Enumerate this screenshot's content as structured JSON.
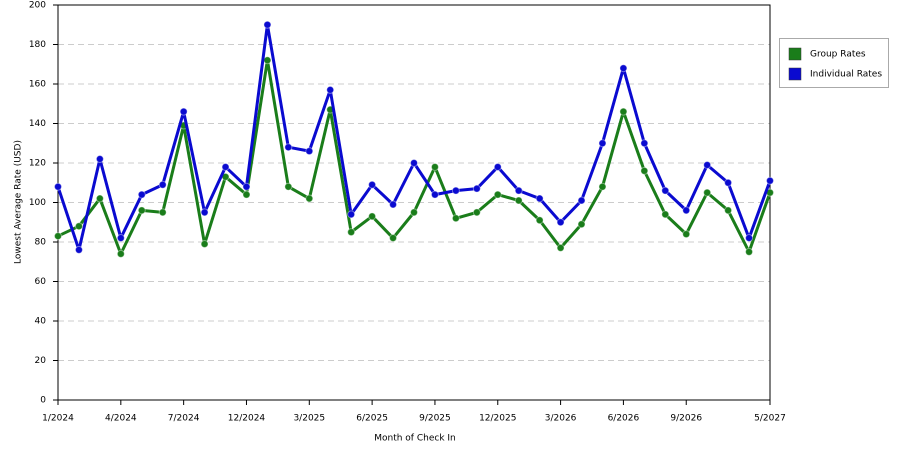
{
  "chart_data": {
    "type": "line",
    "x_label": "Month of Check In",
    "y_label": "Lowest Average Rate (USD)",
    "categories": [
      "1/2024",
      null,
      null,
      "4/2024",
      null,
      null,
      "7/2024",
      null,
      null,
      "12/2024",
      null,
      null,
      "3/2025",
      null,
      null,
      "6/2025",
      null,
      null,
      "9/2025",
      null,
      null,
      "12/2025",
      null,
      null,
      "3/2026",
      null,
      null,
      "6/2026",
      null,
      null,
      "9/2026",
      null,
      null,
      null,
      "5/2027"
    ],
    "series": [
      {
        "name": "Group Rates",
        "color": "#1a7d1a",
        "values": [
          83,
          88,
          102,
          74,
          96,
          95,
          139,
          79,
          113,
          104,
          172,
          108,
          102,
          147,
          85,
          93,
          82,
          95,
          118,
          92,
          95,
          104,
          101,
          91,
          77,
          89,
          108,
          146,
          116,
          94,
          84,
          105,
          96,
          75,
          105
        ]
      },
      {
        "name": "Individual Rates",
        "color": "#0a0ad0",
        "values": [
          108,
          76,
          122,
          82,
          104,
          109,
          146,
          95,
          118,
          108,
          190,
          128,
          126,
          157,
          94,
          109,
          99,
          120,
          104,
          106,
          107,
          118,
          106,
          102,
          90,
          101,
          130,
          168,
          130,
          106,
          96,
          119,
          110,
          82,
          111
        ]
      }
    ],
    "ylim": [
      0,
      200
    ],
    "yticks": [
      0,
      20,
      40,
      60,
      80,
      100,
      120,
      140,
      160,
      180,
      200
    ],
    "grid": true,
    "legend": "right"
  }
}
